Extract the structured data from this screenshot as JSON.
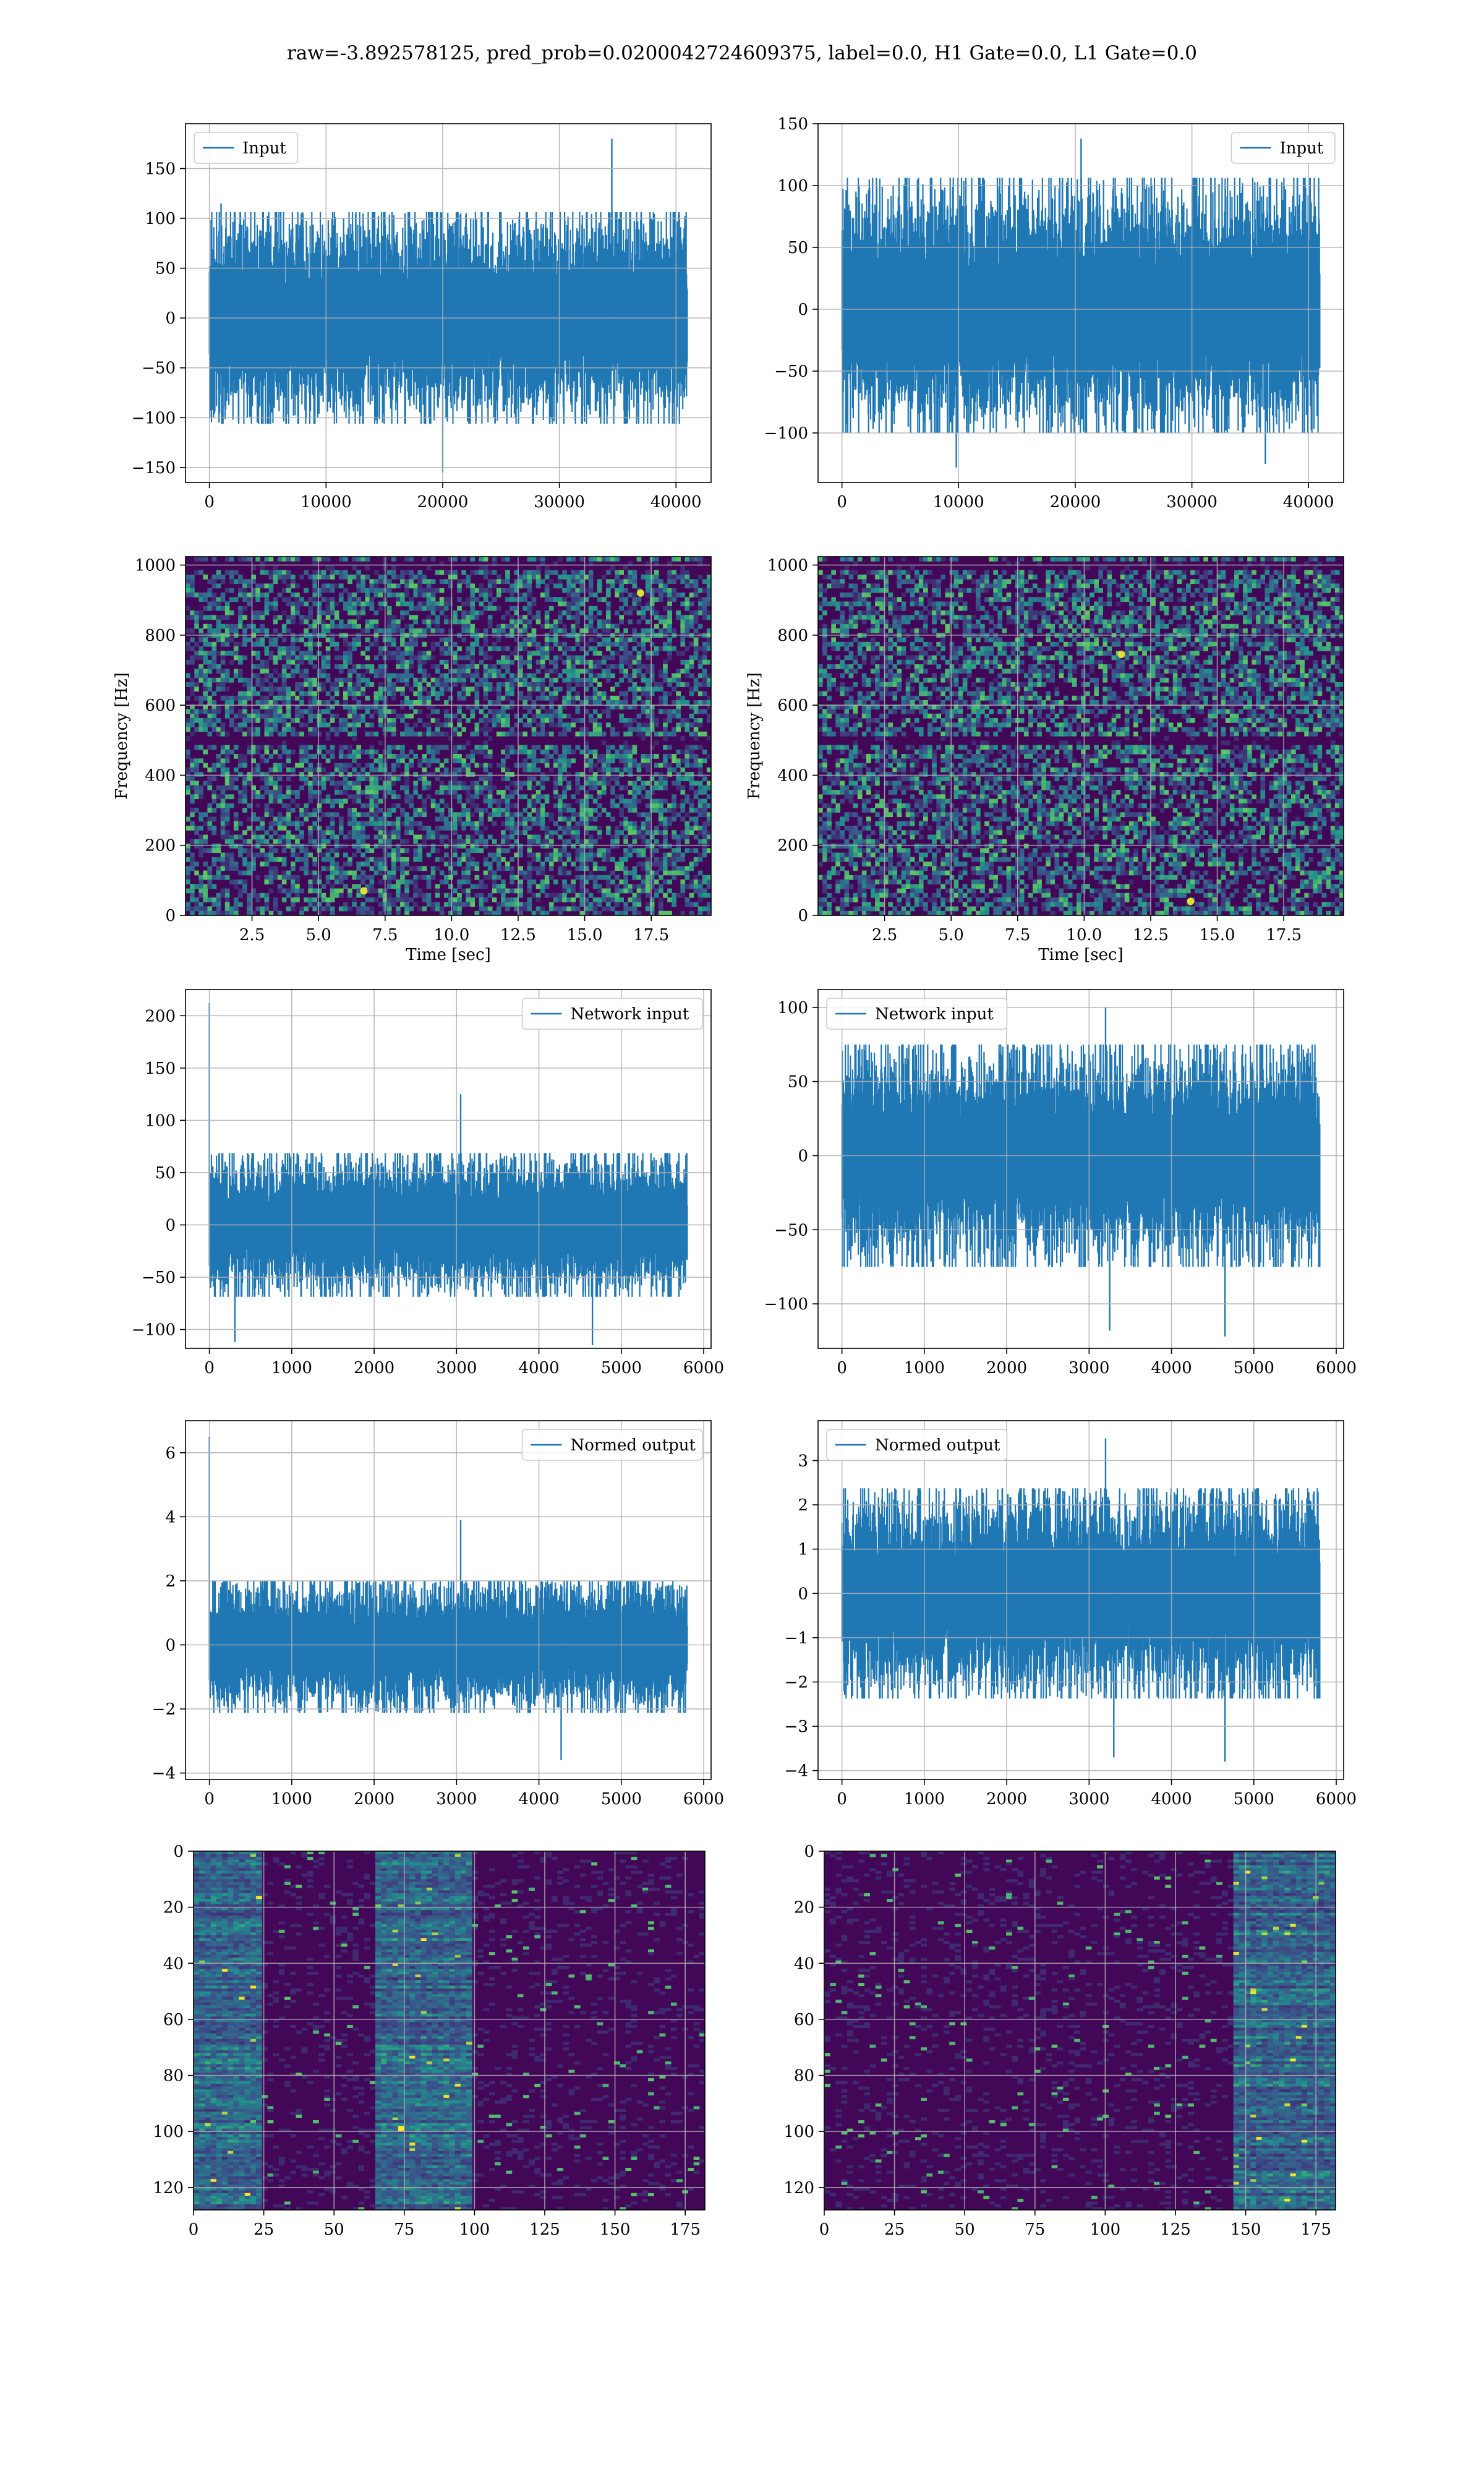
{
  "figure": {
    "title": "raw=-3.892578125, pred_prob=0.0200042724609375, label=0.0, H1 Gate=0.0, L1 Gate=0.0"
  },
  "colors": {
    "series": "#1f77b4",
    "grid": "#b0b0b0",
    "spine": "#000000"
  },
  "chart_data": [
    {
      "id": "input-h1",
      "type": "line",
      "legend": [
        "Input"
      ],
      "legend_loc": "upper-left",
      "xlim": [
        -2048,
        43008
      ],
      "ylim": [
        -165,
        195
      ],
      "xticks": [
        0,
        10000,
        20000,
        30000,
        40000
      ],
      "yticks": [
        -150,
        -100,
        -50,
        0,
        50,
        100,
        150
      ],
      "xticklabels": [
        "0",
        "10000",
        "20000",
        "30000",
        "40000"
      ],
      "yticklabels": [
        "−150",
        "−100",
        "−50",
        "0",
        "50",
        "100",
        "150"
      ],
      "x_range": [
        0,
        40960
      ],
      "envelope": {
        "mean": 0,
        "typ_pos": 85,
        "typ_neg": -85
      },
      "peaks": [
        {
          "x": 34500,
          "y": 180
        },
        {
          "x": 20000,
          "y": -155
        },
        {
          "x": 1000,
          "y": 115
        }
      ],
      "xlabel": "",
      "ylabel": "",
      "grid": true
    },
    {
      "id": "input-l1",
      "type": "line",
      "legend": [
        "Input"
      ],
      "legend_loc": "upper-right",
      "xlim": [
        -2048,
        43008
      ],
      "ylim": [
        -140,
        150
      ],
      "xticks": [
        0,
        10000,
        20000,
        30000,
        40000
      ],
      "yticks": [
        -100,
        -50,
        0,
        50,
        100,
        150
      ],
      "xticklabels": [
        "0",
        "10000",
        "20000",
        "30000",
        "40000"
      ],
      "yticklabels": [
        "−100",
        "−50",
        "0",
        "50",
        "100",
        "150"
      ],
      "x_range": [
        0,
        40960
      ],
      "envelope": {
        "mean": 0,
        "typ_pos": 85,
        "typ_neg": -80
      },
      "peaks": [
        {
          "x": 20500,
          "y": 138
        },
        {
          "x": 9800,
          "y": -128
        },
        {
          "x": 36300,
          "y": -125
        }
      ],
      "xlabel": "",
      "ylabel": "",
      "grid": true
    },
    {
      "id": "spectrogram-h1",
      "type": "heatmap",
      "colormap": "viridis",
      "xlim": [
        0,
        19.75
      ],
      "ylim": [
        0,
        1024
      ],
      "xticks": [
        2.5,
        5,
        7.5,
        10,
        12.5,
        15,
        17.5
      ],
      "yticks": [
        0,
        200,
        400,
        600,
        800,
        1000
      ],
      "xticklabels": [
        "2.5",
        "5.0",
        "7.5",
        "10.0",
        "12.5",
        "15.0",
        "17.5"
      ],
      "yticklabels": [
        "0",
        "200",
        "400",
        "600",
        "800",
        "1000"
      ],
      "xlabel": "Time [sec]",
      "ylabel": "Frequency [Hz]",
      "grid": true,
      "dark_bands": [
        {
          "f": 500
        },
        {
          "f": 1000
        }
      ],
      "hot_spots": [
        {
          "t": 6.7,
          "f": 70
        },
        {
          "t": 17.1,
          "f": 920
        }
      ]
    },
    {
      "id": "spectrogram-l1",
      "type": "heatmap",
      "colormap": "viridis",
      "xlim": [
        0,
        19.75
      ],
      "ylim": [
        0,
        1024
      ],
      "xticks": [
        2.5,
        5,
        7.5,
        10,
        12.5,
        15,
        17.5
      ],
      "yticks": [
        0,
        200,
        400,
        600,
        800,
        1000
      ],
      "xticklabels": [
        "2.5",
        "5.0",
        "7.5",
        "10.0",
        "12.5",
        "15.0",
        "17.5"
      ],
      "yticklabels": [
        "0",
        "200",
        "400",
        "600",
        "800",
        "1000"
      ],
      "xlabel": "Time [sec]",
      "ylabel": "Frequency [Hz]",
      "grid": true,
      "dark_bands": [
        {
          "f": 500
        },
        {
          "f": 1000
        }
      ],
      "hot_spots": [
        {
          "t": 11.4,
          "f": 745
        },
        {
          "t": 14,
          "f": 40
        }
      ]
    },
    {
      "id": "network-input-h1",
      "type": "line",
      "legend": [
        "Network input"
      ],
      "legend_loc": "upper-right",
      "xlim": [
        -290,
        6090
      ],
      "ylim": [
        -118,
        225
      ],
      "xticks": [
        0,
        1000,
        2000,
        3000,
        4000,
        5000,
        6000
      ],
      "yticks": [
        -100,
        -50,
        0,
        50,
        100,
        150,
        200
      ],
      "xticklabels": [
        "0",
        "1000",
        "2000",
        "3000",
        "4000",
        "5000",
        "6000"
      ],
      "yticklabels": [
        "−100",
        "−50",
        "0",
        "50",
        "100",
        "150",
        "200"
      ],
      "x_range": [
        0,
        5800
      ],
      "envelope": {
        "mean": 0,
        "typ_pos": 55,
        "typ_neg": -55
      },
      "peaks": [
        {
          "x": 0,
          "y": 212
        },
        {
          "x": 3050,
          "y": 125
        },
        {
          "x": 310,
          "y": -112
        },
        {
          "x": 4650,
          "y": -115
        }
      ],
      "xlabel": "",
      "ylabel": "",
      "grid": true
    },
    {
      "id": "network-input-l1",
      "type": "line",
      "legend": [
        "Network input"
      ],
      "legend_loc": "upper-left",
      "xlim": [
        -290,
        6090
      ],
      "ylim": [
        -130,
        112
      ],
      "xticks": [
        0,
        1000,
        2000,
        3000,
        4000,
        5000,
        6000
      ],
      "yticks": [
        -100,
        -50,
        0,
        50,
        100
      ],
      "xticklabels": [
        "0",
        "1000",
        "2000",
        "3000",
        "4000",
        "5000",
        "6000"
      ],
      "yticklabels": [
        "−100",
        "−50",
        "0",
        "50",
        "100"
      ],
      "x_range": [
        0,
        5800
      ],
      "envelope": {
        "mean": 0,
        "typ_pos": 60,
        "typ_neg": -60
      },
      "peaks": [
        {
          "x": 3200,
          "y": 100
        },
        {
          "x": 4650,
          "y": -122
        },
        {
          "x": 3250,
          "y": -118
        }
      ],
      "xlabel": "",
      "ylabel": "",
      "grid": true
    },
    {
      "id": "normed-output-h1",
      "type": "line",
      "legend": [
        "Normed output"
      ],
      "legend_loc": "upper-right",
      "xlim": [
        -290,
        6090
      ],
      "ylim": [
        -4.2,
        7.0
      ],
      "xticks": [
        0,
        1000,
        2000,
        3000,
        4000,
        5000,
        6000
      ],
      "yticks": [
        -4,
        -2,
        0,
        2,
        4,
        6
      ],
      "xticklabels": [
        "0",
        "1000",
        "2000",
        "3000",
        "4000",
        "5000",
        "6000"
      ],
      "yticklabels": [
        "−4",
        "−2",
        "0",
        "2",
        "4",
        "6"
      ],
      "x_range": [
        0,
        5800
      ],
      "envelope": {
        "mean": 0,
        "typ_pos": 1.6,
        "typ_neg": -1.7
      },
      "peaks": [
        {
          "x": 0,
          "y": 6.5
        },
        {
          "x": 3050,
          "y": 3.9
        },
        {
          "x": 4270,
          "y": -3.6
        }
      ],
      "xlabel": "",
      "ylabel": "",
      "grid": true
    },
    {
      "id": "normed-output-l1",
      "type": "line",
      "legend": [
        "Normed output"
      ],
      "legend_loc": "upper-left",
      "xlim": [
        -290,
        6090
      ],
      "ylim": [
        -4.2,
        3.9
      ],
      "xticks": [
        0,
        1000,
        2000,
        3000,
        4000,
        5000,
        6000
      ],
      "yticks": [
        -4,
        -3,
        -2,
        -1,
        0,
        1,
        2,
        3
      ],
      "xticklabels": [
        "0",
        "1000",
        "2000",
        "3000",
        "4000",
        "5000",
        "6000"
      ],
      "yticklabels": [
        "−4",
        "−3",
        "−2",
        "−1",
        "0",
        "1",
        "2",
        "3"
      ],
      "x_range": [
        0,
        5800
      ],
      "envelope": {
        "mean": 0,
        "typ_pos": 1.9,
        "typ_neg": -1.9
      },
      "peaks": [
        {
          "x": 3200,
          "y": 3.5
        },
        {
          "x": 4650,
          "y": -3.8
        },
        {
          "x": 3300,
          "y": -3.7
        }
      ],
      "xlabel": "",
      "ylabel": "",
      "grid": true
    },
    {
      "id": "feature-map-h1",
      "type": "heatmap",
      "colormap": "viridis",
      "xlim": [
        0,
        182
      ],
      "ylim": [
        128,
        0
      ],
      "xticks": [
        0,
        25,
        50,
        75,
        100,
        125,
        150,
        175
      ],
      "yticks": [
        0,
        20,
        40,
        60,
        80,
        100,
        120
      ],
      "xticklabels": [
        "0",
        "25",
        "50",
        "75",
        "100",
        "125",
        "150",
        "175"
      ],
      "yticklabels": [
        "0",
        "20",
        "40",
        "60",
        "80",
        "100",
        "120"
      ],
      "xlabel": "",
      "ylabel": "",
      "grid": true,
      "active_columns": [
        {
          "x_from": 0,
          "x_to": 25
        },
        {
          "x_from": 65,
          "x_to": 100
        }
      ]
    },
    {
      "id": "feature-map-l1",
      "type": "heatmap",
      "colormap": "viridis",
      "xlim": [
        0,
        182
      ],
      "ylim": [
        128,
        0
      ],
      "xticks": [
        0,
        25,
        50,
        75,
        100,
        125,
        150,
        175
      ],
      "yticks": [
        0,
        20,
        40,
        60,
        80,
        100,
        120
      ],
      "xticklabels": [
        "0",
        "25",
        "50",
        "75",
        "100",
        "125",
        "150",
        "175"
      ],
      "yticklabels": [
        "0",
        "20",
        "40",
        "60",
        "80",
        "100",
        "120"
      ],
      "xlabel": "",
      "ylabel": "",
      "grid": true,
      "active_columns": [
        {
          "x_from": 145,
          "x_to": 182
        }
      ]
    }
  ]
}
